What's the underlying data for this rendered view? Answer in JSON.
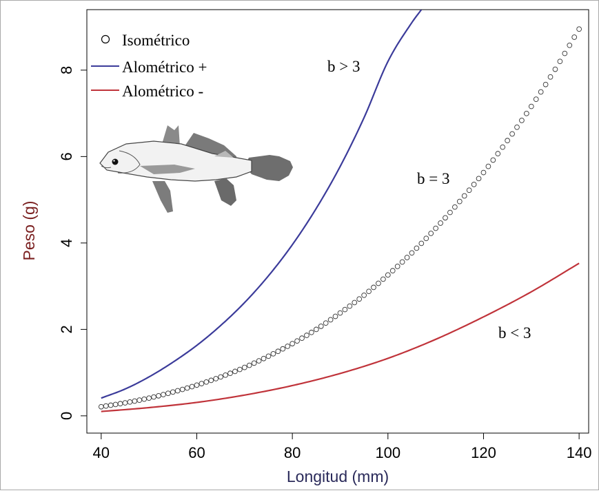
{
  "chart_data": {
    "type": "line",
    "xlabel": "Longitud (mm)",
    "ylabel": "Peso (g)",
    "xlim": [
      37,
      142
    ],
    "ylim": [
      -0.4,
      9.4
    ],
    "xticks": [
      "40",
      "60",
      "80",
      "100",
      "120",
      "140"
    ],
    "yticks": [
      "0",
      "2",
      "4",
      "6",
      "8"
    ],
    "grid": false,
    "legend_position": "top-left",
    "legend": [
      {
        "label": "Isométrico",
        "marker": "circle"
      },
      {
        "label": "Alométrico +",
        "marker": "line"
      },
      {
        "label": "Alométrico -",
        "marker": "line"
      }
    ],
    "annotations": [
      {
        "text": "b > 3",
        "series": "Alométrico +"
      },
      {
        "text": "b = 3",
        "series": "Isométrico"
      },
      {
        "text": "b < 3",
        "series": "Alométrico -"
      }
    ],
    "series": [
      {
        "name": "Alométrico +",
        "style": "line",
        "color": "#3b3b9a",
        "x": [
          40,
          45,
          50,
          55,
          60,
          65,
          70,
          75,
          80,
          85,
          90,
          95,
          100,
          105,
          107
        ],
        "y": [
          0.41,
          0.62,
          0.9,
          1.24,
          1.63,
          2.09,
          2.62,
          3.24,
          3.96,
          4.8,
          5.77,
          6.9,
          8.2,
          9.1,
          9.4
        ]
      },
      {
        "name": "Isométrico",
        "style": "points",
        "color": "#333333",
        "x": [
          40,
          45,
          50,
          55,
          60,
          65,
          70,
          75,
          80,
          85,
          90,
          95,
          100,
          105,
          110,
          115,
          120,
          125,
          130,
          135,
          140
        ],
        "y": [
          0.21,
          0.3,
          0.41,
          0.55,
          0.71,
          0.9,
          1.12,
          1.38,
          1.67,
          2.0,
          2.38,
          2.79,
          3.26,
          3.77,
          4.34,
          4.96,
          5.63,
          6.37,
          7.16,
          8.02,
          8.95
        ]
      },
      {
        "name": "Alométrico -",
        "style": "line",
        "color": "#c0333a",
        "x": [
          40,
          50,
          60,
          70,
          80,
          90,
          100,
          110,
          120,
          130,
          140
        ],
        "y": [
          0.1,
          0.19,
          0.31,
          0.48,
          0.7,
          0.98,
          1.33,
          1.77,
          2.29,
          2.87,
          3.53
        ]
      }
    ]
  }
}
